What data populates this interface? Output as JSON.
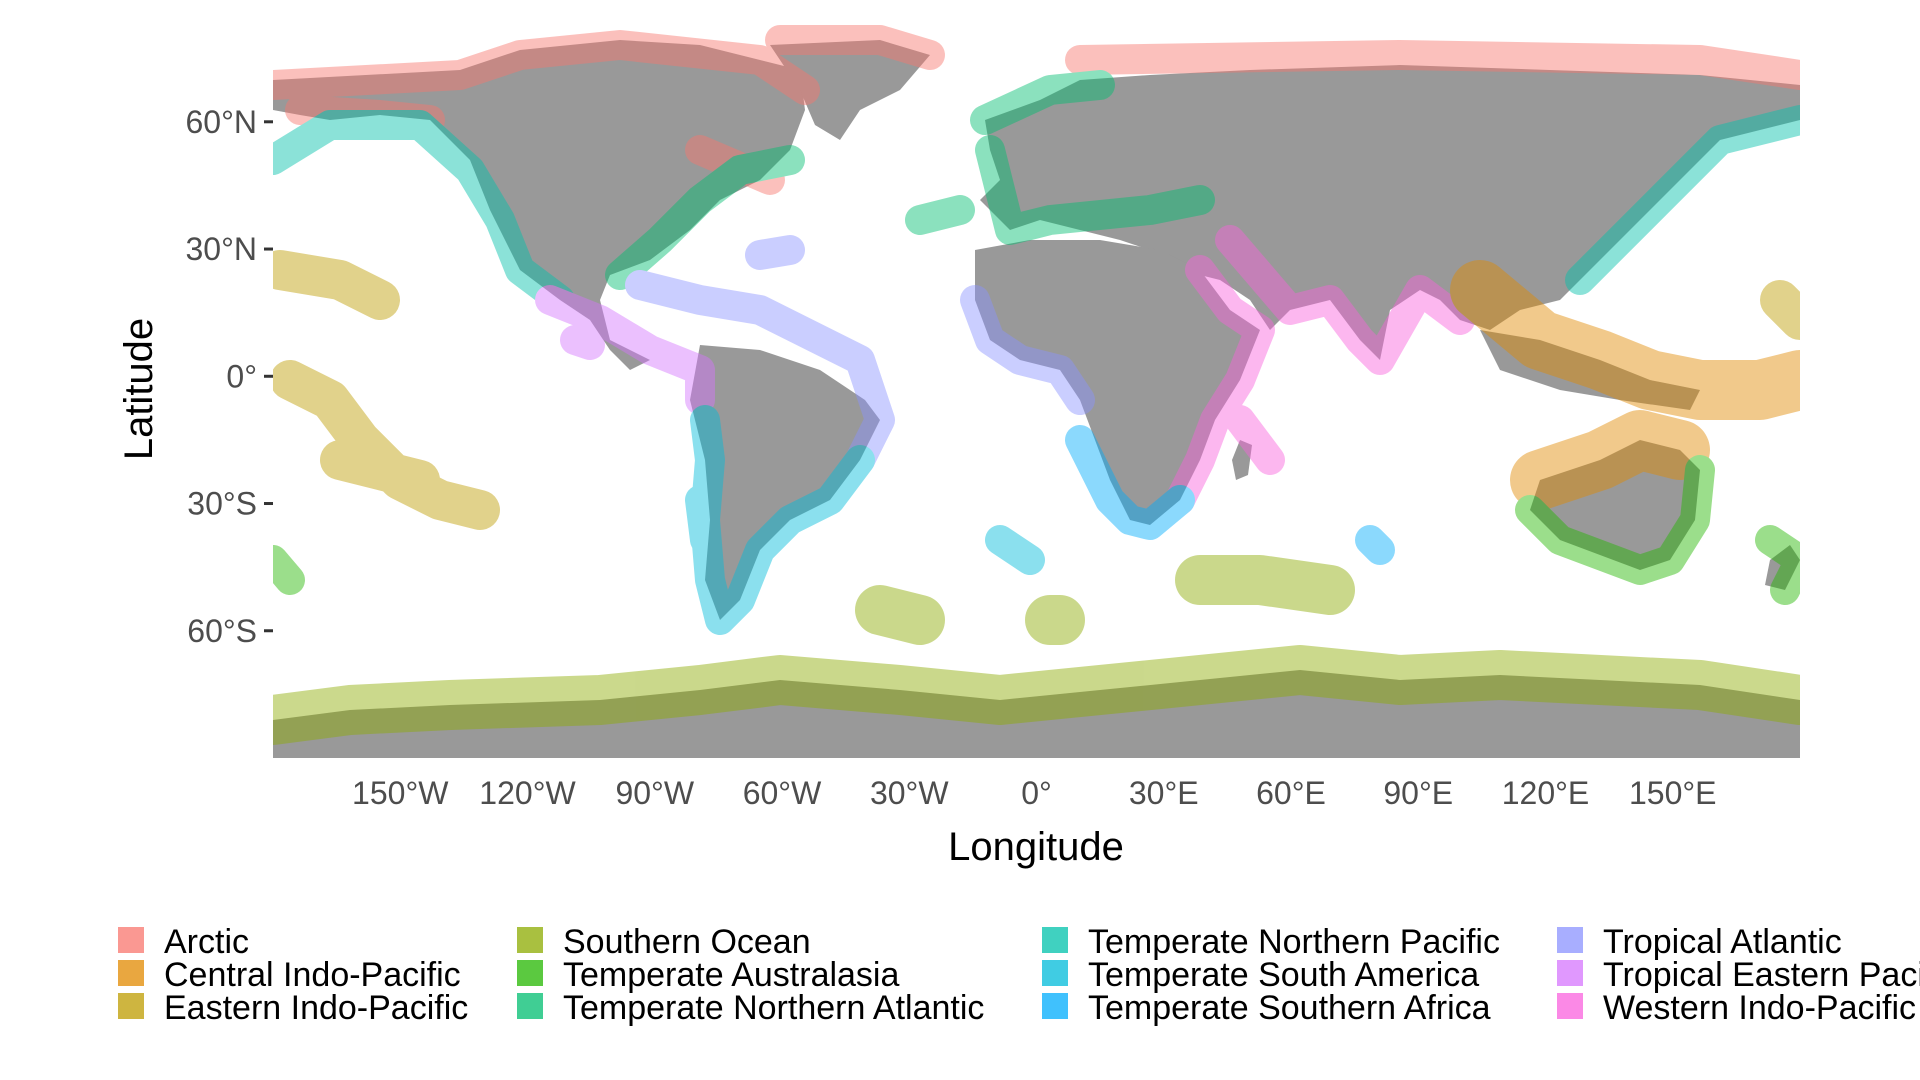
{
  "map": {
    "xlabel": "Longitude",
    "ylabel": "Latitude",
    "x_ticks": [
      "150°W",
      "120°W",
      "90°W",
      "60°W",
      "30°W",
      "0°",
      "30°E",
      "60°E",
      "90°E",
      "120°E",
      "150°E"
    ],
    "x_tick_values": [
      -150,
      -120,
      -90,
      -60,
      -30,
      0,
      30,
      60,
      90,
      120,
      150
    ],
    "y_ticks": [
      "60°N",
      "30°N",
      "0°",
      "30°S",
      "60°S"
    ],
    "y_tick_values": [
      60,
      30,
      0,
      -30,
      -60
    ],
    "lon_range": [
      -180,
      180
    ],
    "lat_range": [
      -90,
      84
    ],
    "land_color": "#999999",
    "background_color": "#ffffff",
    "legend_position": "bottom",
    "legend": [
      {
        "label": "Arctic",
        "color": "#F8766D"
      },
      {
        "label": "Central Indo-Pacific",
        "color": "#E18A00"
      },
      {
        "label": "Eastern Indo-Pacific",
        "color": "#BE9C00"
      },
      {
        "label": "Southern Ocean",
        "color": "#8CAB00"
      },
      {
        "label": "Temperate Australasia",
        "color": "#24B700"
      },
      {
        "label": "Temperate Northern Atlantic",
        "color": "#00BE70"
      },
      {
        "label": "Temperate Northern Pacific",
        "color": "#00C1AB"
      },
      {
        "label": "Temperate South America",
        "color": "#00BBDA"
      },
      {
        "label": "Temperate Southern Africa",
        "color": "#00ACFC"
      },
      {
        "label": "Tropical Atlantic",
        "color": "#8B93FF"
      },
      {
        "label": "Tropical Eastern Pacific",
        "color": "#D575FE"
      },
      {
        "label": "Western Indo-Pacific",
        "color": "#F962DD"
      }
    ]
  }
}
